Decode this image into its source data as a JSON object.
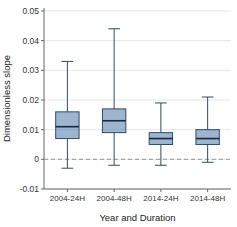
{
  "chart_data": {
    "type": "box",
    "categories": [
      "2004-24H",
      "2004-48H",
      "2014-24H",
      "2014-48H"
    ],
    "boxes": [
      {
        "whislo": -0.003,
        "q1": 0.007,
        "med": 0.011,
        "q3": 0.016,
        "whishi": 0.033
      },
      {
        "whislo": -0.002,
        "q1": 0.009,
        "med": 0.013,
        "q3": 0.017,
        "whishi": 0.044
      },
      {
        "whislo": -0.002,
        "q1": 0.005,
        "med": 0.007,
        "q3": 0.009,
        "whishi": 0.019
      },
      {
        "whislo": -0.001,
        "q1": 0.005,
        "med": 0.007,
        "q3": 0.01,
        "whishi": 0.021
      }
    ],
    "hline": 0,
    "ylim": [
      -0.01,
      0.051
    ],
    "yticks": [
      -0.01,
      0,
      0.01,
      0.02,
      0.03,
      0.04,
      0.05
    ],
    "xlabel": "Year and Duration",
    "ylabel": "Dimensionless slope"
  }
}
